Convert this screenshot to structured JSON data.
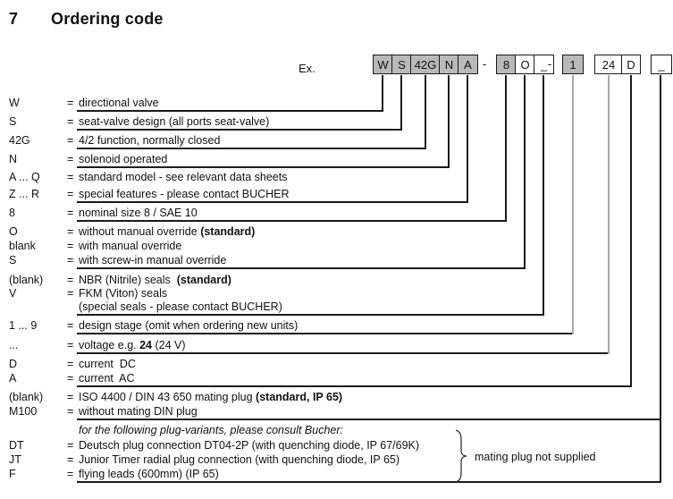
{
  "title": {
    "number": "7",
    "text": "Ordering code"
  },
  "example": {
    "label": "Ex.",
    "separator": "-",
    "boxes": [
      {
        "label": "W",
        "filled": true
      },
      {
        "label": "S",
        "filled": true
      },
      {
        "label": "42G",
        "filled": true
      },
      {
        "label": "N",
        "filled": true
      },
      {
        "label": "A",
        "filled": true
      },
      {
        "label": "8",
        "filled": true
      },
      {
        "label": "O",
        "filled": false
      },
      {
        "label": "_",
        "filled": false
      },
      {
        "label": "1",
        "filled": true
      },
      {
        "label": "24",
        "filled": false
      },
      {
        "label": "D",
        "filled": false
      },
      {
        "label": "_",
        "filled": false
      }
    ]
  },
  "legend": {
    "equals": "=",
    "rows": [
      {
        "code": "W",
        "segments": [
          {
            "t": "directional valve"
          }
        ]
      },
      {
        "code": "S",
        "segments": [
          {
            "t": "seat-valve design (all ports seat-valve)"
          }
        ]
      },
      {
        "code": "42G",
        "segments": [
          {
            "t": "4/2 function, normally closed"
          }
        ]
      },
      {
        "code": "N",
        "segments": [
          {
            "t": "solenoid operated"
          }
        ]
      },
      {
        "code": "A ... Q",
        "segments": [
          {
            "t": "standard model - see relevant data sheets"
          }
        ]
      },
      {
        "code": "Z ... R",
        "segments": [
          {
            "t": "special features - please contact BUCHER"
          }
        ]
      },
      {
        "code": "8",
        "segments": [
          {
            "t": "nominal size 8 / SAE 10"
          }
        ]
      },
      {
        "code": "O",
        "segments": [
          {
            "t": "without manual override "
          },
          {
            "t": "(standard)",
            "b": true
          }
        ]
      },
      {
        "code": "blank",
        "segments": [
          {
            "t": "with manual override"
          }
        ]
      },
      {
        "code": "S",
        "segments": [
          {
            "t": "with screw-in manual override"
          }
        ]
      },
      {
        "code": "(blank)",
        "segments": [
          {
            "t": "NBR (Nitrile) seals  "
          },
          {
            "t": "(standard)",
            "b": true
          }
        ]
      },
      {
        "code": "V",
        "segments": [
          {
            "t": "FKM (Viton) seals"
          }
        ]
      },
      {
        "code": "",
        "segments": [
          {
            "t": "(special seals - please contact BUCHER)"
          }
        ]
      },
      {
        "code": "1 ... 9",
        "segments": [
          {
            "t": "design stage (omit when ordering new units)"
          }
        ]
      },
      {
        "code": "...",
        "segments": [
          {
            "t": "voltage e.g. "
          },
          {
            "t": "24",
            "b": true
          },
          {
            "t": " (24 V)"
          }
        ]
      },
      {
        "code": "D",
        "segments": [
          {
            "t": "current  DC"
          }
        ]
      },
      {
        "code": "A",
        "segments": [
          {
            "t": "current  AC"
          }
        ]
      },
      {
        "code": "(blank)",
        "segments": [
          {
            "t": "ISO 4400 / DIN 43 650 mating plug "
          },
          {
            "t": "(standard, IP 65)",
            "b": true
          }
        ]
      },
      {
        "code": "M100",
        "segments": [
          {
            "t": "without mating DIN plug"
          }
        ]
      },
      {
        "code": "",
        "italic": true,
        "segments": [
          {
            "t": "for the following plug-variants, please consult Bucher:"
          }
        ]
      },
      {
        "code": "DT",
        "segments": [
          {
            "t": "Deutsch plug connection DT04-2P (with quenching diode, IP 67/69K)"
          }
        ]
      },
      {
        "code": "JT",
        "segments": [
          {
            "t": "Junior Timer radial plug connection (with quenching diode, IP 65)"
          }
        ]
      },
      {
        "code": "F",
        "segments": [
          {
            "t": "flying leads (600mm) (IP 65)"
          }
        ]
      }
    ]
  },
  "note": {
    "text": "mating plug not supplied"
  },
  "colors": {
    "box_fill": "#b9b9b9",
    "line": "#1a1a1a",
    "gray_line": "#a8a8a8",
    "text": "#111111"
  }
}
